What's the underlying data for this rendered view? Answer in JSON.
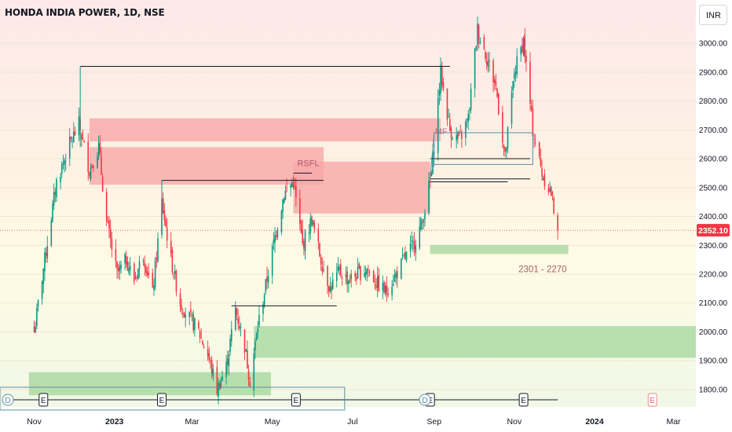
{
  "header": {
    "title": "HONDA INDIA POWER, 1D, NSE",
    "currency_label": "INR"
  },
  "price_tag": {
    "value": "2352.10",
    "color": "#f23645"
  },
  "colors": {
    "up": "#089981",
    "down": "#f23645",
    "supply_zone": "#f7a8a8",
    "demand_zone": "#a8d8a0",
    "line": "#131722",
    "box_line": "#5b8fa8",
    "zone_label": "#b05a6a"
  },
  "events": {
    "earnings_glyph": "E",
    "dividend_glyph": "D"
  },
  "chart_data": {
    "type": "candlestick",
    "title": "HONDA INDIA POWER, 1D, NSE",
    "y_ticks": [
      1800,
      1900,
      2000,
      2100,
      2200,
      2300,
      2400,
      2500,
      2600,
      2700,
      2800,
      2900,
      3000
    ],
    "ylim": [
      1740,
      3150
    ],
    "x_ticks": [
      {
        "label": "Nov",
        "date": "2022-11-01"
      },
      {
        "label": "2023",
        "date": "2023-01-01"
      },
      {
        "label": "Mar",
        "date": "2023-03-01"
      },
      {
        "label": "May",
        "date": "2023-05-01"
      },
      {
        "label": "Jul",
        "date": "2023-07-01"
      },
      {
        "label": "Sep",
        "date": "2023-09-01"
      },
      {
        "label": "Nov",
        "date": "2023-11-01"
      },
      {
        "label": "2024",
        "date": "2024-01-01"
      },
      {
        "label": "Mar",
        "date": "2024-03-01"
      }
    ],
    "xlim": [
      "2022-10-06",
      "2024-03-18"
    ],
    "last_price": 2352.1,
    "price_path": [
      [
        "2022-11-01",
        2000
      ],
      [
        "2022-11-08",
        2220
      ],
      [
        "2022-11-18",
        2520
      ],
      [
        "2022-11-28",
        2650
      ],
      [
        "2022-12-05",
        2720
      ],
      [
        "2022-12-13",
        2560
      ],
      [
        "2022-12-20",
        2640
      ],
      [
        "2022-12-26",
        2380
      ],
      [
        "2023-01-03",
        2200
      ],
      [
        "2023-01-10",
        2250
      ],
      [
        "2023-01-16",
        2180
      ],
      [
        "2023-01-23",
        2270
      ],
      [
        "2023-01-30",
        2130
      ],
      [
        "2023-02-06",
        2450
      ],
      [
        "2023-02-13",
        2250
      ],
      [
        "2023-02-20",
        2100
      ],
      [
        "2023-02-27",
        2050
      ],
      [
        "2023-03-06",
        2000
      ],
      [
        "2023-03-13",
        1920
      ],
      [
        "2023-03-20",
        1800
      ],
      [
        "2023-03-27",
        1880
      ],
      [
        "2023-04-03",
        2080
      ],
      [
        "2023-04-10",
        1950
      ],
      [
        "2023-04-14",
        1830
      ],
      [
        "2023-04-20",
        2020
      ],
      [
        "2023-04-26",
        2160
      ],
      [
        "2023-05-03",
        2330
      ],
      [
        "2023-05-10",
        2480
      ],
      [
        "2023-05-17",
        2520
      ],
      [
        "2023-05-24",
        2300
      ],
      [
        "2023-05-31",
        2390
      ],
      [
        "2023-06-07",
        2250
      ],
      [
        "2023-06-14",
        2150
      ],
      [
        "2023-06-21",
        2210
      ],
      [
        "2023-06-28",
        2180
      ],
      [
        "2023-07-05",
        2200
      ],
      [
        "2023-07-12",
        2220
      ],
      [
        "2023-07-19",
        2170
      ],
      [
        "2023-07-26",
        2140
      ],
      [
        "2023-08-02",
        2190
      ],
      [
        "2023-08-09",
        2250
      ],
      [
        "2023-08-16",
        2300
      ],
      [
        "2023-08-23",
        2380
      ],
      [
        "2023-08-30",
        2550
      ],
      [
        "2023-09-06",
        2900
      ],
      [
        "2023-09-13",
        2700
      ],
      [
        "2023-09-20",
        2660
      ],
      [
        "2023-09-27",
        2740
      ],
      [
        "2023-10-04",
        3050
      ],
      [
        "2023-10-11",
        2950
      ],
      [
        "2023-10-18",
        2850
      ],
      [
        "2023-10-25",
        2600
      ],
      [
        "2023-11-01",
        2900
      ],
      [
        "2023-11-08",
        3010
      ],
      [
        "2023-11-15",
        2700
      ],
      [
        "2023-11-22",
        2550
      ],
      [
        "2023-11-29",
        2480
      ],
      [
        "2023-12-04",
        2352.1
      ]
    ],
    "supply_zones": [
      {
        "from": "2022-12-13",
        "to": "2023-09-06",
        "low": 2660,
        "high": 2740
      },
      {
        "from": "2022-12-13",
        "to": "2023-06-09",
        "low": 2510,
        "high": 2640
      },
      {
        "from": "2023-05-17",
        "to": "2023-08-29",
        "low": 2410,
        "high": 2590,
        "label": "RSFL"
      }
    ],
    "demand_zones": [
      {
        "from": "2023-08-29",
        "to": "2023-12-12",
        "low": 2270,
        "high": 2301,
        "label": "2301 - 2270"
      },
      {
        "from": "2023-04-17",
        "to": "2024-03-18",
        "low": 1910,
        "high": 2020
      },
      {
        "from": "2022-10-28",
        "to": "2023-04-30",
        "low": 1780,
        "high": 1860
      }
    ],
    "lines": [
      {
        "from": "2022-12-06",
        "to": "2023-09-13",
        "price": 2920
      },
      {
        "from": "2023-02-06",
        "to": "2023-06-09",
        "price": 2525
      },
      {
        "from": "2023-08-29",
        "to": "2023-10-27",
        "price": 2520
      },
      {
        "from": "2023-03-31",
        "to": "2023-06-19",
        "price": 2090
      },
      {
        "from": "2023-05-17",
        "to": "2023-05-31",
        "price": 2550
      },
      {
        "from": "2023-08-29",
        "to": "2023-11-13",
        "price": 2600
      },
      {
        "from": "2023-08-29",
        "to": "2023-11-13",
        "price": 2530
      }
    ],
    "boxes": [
      {
        "from": "2023-09-01",
        "to": "2023-11-15",
        "low": 2580,
        "high": 2690,
        "label": "MF"
      }
    ],
    "earnings_markers": [
      "2022-11-08",
      "2023-02-06",
      "2023-05-19",
      "2023-08-29",
      "2023-11-08",
      "2024-02-14"
    ],
    "dividend_markers": [
      "2022-10-12",
      "2023-08-25"
    ]
  }
}
